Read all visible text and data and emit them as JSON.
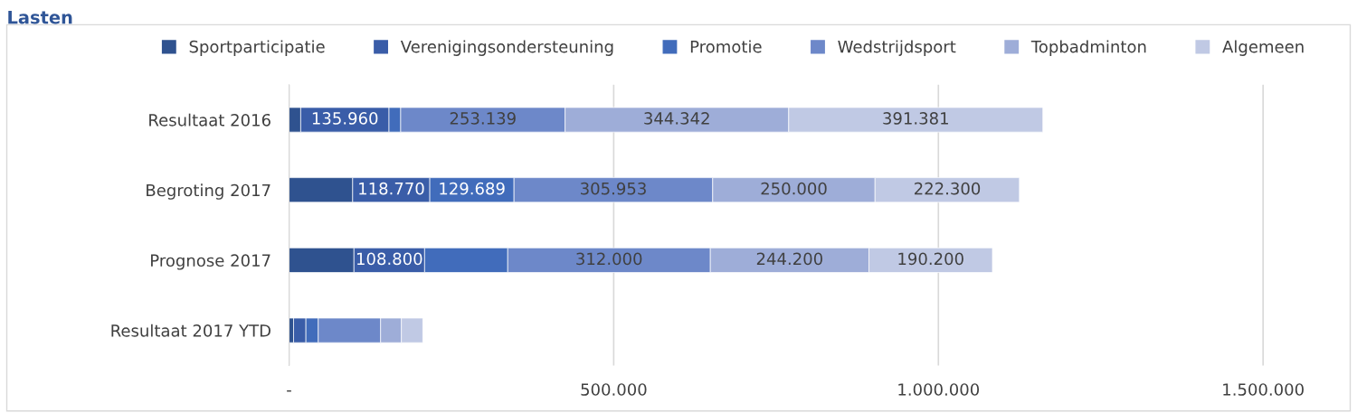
{
  "chart_data": {
    "type": "bar",
    "orientation": "horizontal",
    "stacked": true,
    "title": "Lasten",
    "categories": [
      "Resultaat 2016",
      "Begroting 2017",
      "Prognose 2017",
      "Resultaat 2017 YTD"
    ],
    "series": [
      {
        "name": "Sportparticipatie",
        "color": "#2f528f",
        "values": [
          18000,
          98000,
          100000,
          7000
        ],
        "value_labels": [
          null,
          null,
          null,
          null
        ]
      },
      {
        "name": "Verenigingsondersteuning",
        "color": "#3a5da8",
        "values": [
          135960,
          118770,
          108800,
          19000
        ],
        "value_labels": [
          "135.960",
          "118.770",
          "108.800",
          null
        ]
      },
      {
        "name": "Promotie",
        "color": "#416cbb",
        "values": [
          18000,
          129689,
          128000,
          19000
        ],
        "value_labels": [
          null,
          "129.689",
          null,
          null
        ]
      },
      {
        "name": "Wedstrijdsport",
        "color": "#6d88c9",
        "values": [
          253139,
          305953,
          312000,
          96000
        ],
        "value_labels": [
          "253.139",
          "305.953",
          "312.000",
          null
        ]
      },
      {
        "name": "Topbadminton",
        "color": "#9eadd8",
        "values": [
          344342,
          250000,
          244200,
          32000
        ],
        "value_labels": [
          "344.342",
          "250.000",
          "244.200",
          null
        ]
      },
      {
        "name": "Algemeen",
        "color": "#c0c9e4",
        "values": [
          391381,
          222300,
          190200,
          33000
        ],
        "value_labels": [
          "391.381",
          "222.300",
          "190.200",
          null
        ]
      }
    ],
    "xlim": [
      0,
      1630000
    ],
    "xticks": [
      {
        "value": 0,
        "label": "-"
      },
      {
        "value": 500000,
        "label": "500.000"
      },
      {
        "value": 1000000,
        "label": "1.000.000"
      },
      {
        "value": 1500000,
        "label": "1.500.000"
      }
    ],
    "grid": "x",
    "legend": "top"
  }
}
